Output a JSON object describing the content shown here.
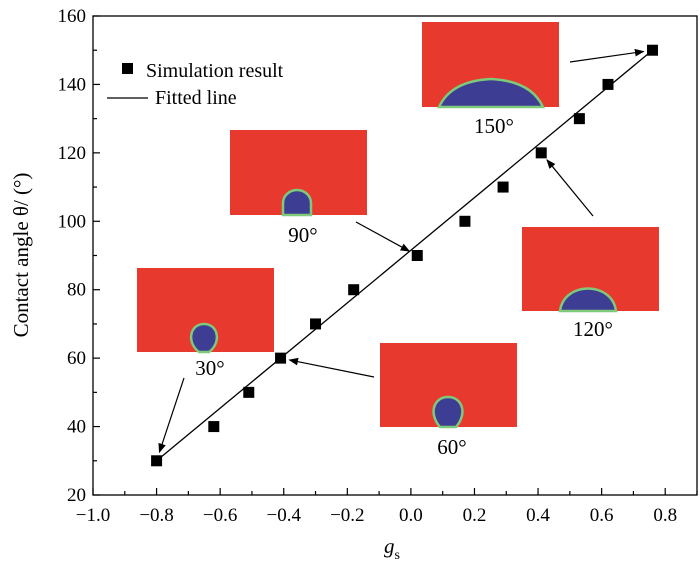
{
  "chart_data": {
    "type": "scatter",
    "xlabel": "g",
    "xlabel_subscript": "s",
    "ylabel": "Contact angle θ/ (°)",
    "xlim": [
      -1.0,
      0.9
    ],
    "ylim": [
      20,
      160
    ],
    "x_ticks": [
      "−1.0",
      "−0.8",
      "−0.6",
      "−0.4",
      "−0.2",
      "0.0",
      "0.2",
      "0.4",
      "0.6",
      "0.8"
    ],
    "y_ticks": [
      "20",
      "40",
      "60",
      "80",
      "100",
      "120",
      "140",
      "160"
    ],
    "legend": {
      "position": "top-left",
      "entries": [
        "Simulation result",
        "Fitted line"
      ]
    },
    "series": [
      {
        "name": "Simulation result",
        "marker": "square",
        "points": [
          {
            "x": -0.8,
            "y": 30
          },
          {
            "x": -0.62,
            "y": 40
          },
          {
            "x": -0.51,
            "y": 50
          },
          {
            "x": -0.41,
            "y": 60
          },
          {
            "x": -0.3,
            "y": 70
          },
          {
            "x": -0.18,
            "y": 80
          },
          {
            "x": 0.02,
            "y": 90
          },
          {
            "x": 0.17,
            "y": 100
          },
          {
            "x": 0.29,
            "y": 110
          },
          {
            "x": 0.41,
            "y": 120
          },
          {
            "x": 0.53,
            "y": 130
          },
          {
            "x": 0.62,
            "y": 140
          },
          {
            "x": 0.76,
            "y": 150
          }
        ]
      },
      {
        "name": "Fitted line",
        "line": [
          {
            "x": -0.8,
            "y": 30
          },
          {
            "x": 0.76,
            "y": 150
          }
        ]
      }
    ],
    "insets": [
      {
        "label": "30°",
        "angle": 30,
        "points_to": {
          "x": -0.8,
          "y": 30
        }
      },
      {
        "label": "60°",
        "angle": 60,
        "points_to": {
          "x": -0.41,
          "y": 60
        }
      },
      {
        "label": "90°",
        "angle": 90,
        "points_to": {
          "x": 0.02,
          "y": 90
        }
      },
      {
        "label": "120°",
        "angle": 120,
        "points_to": {
          "x": 0.41,
          "y": 120
        }
      },
      {
        "label": "150°",
        "angle": 150,
        "points_to": {
          "x": 0.76,
          "y": 150
        }
      }
    ],
    "colors": {
      "fluid": "#e8392f",
      "droplet": "#3d3d94",
      "interface": "#7ec97a",
      "axes": "#000000"
    }
  }
}
